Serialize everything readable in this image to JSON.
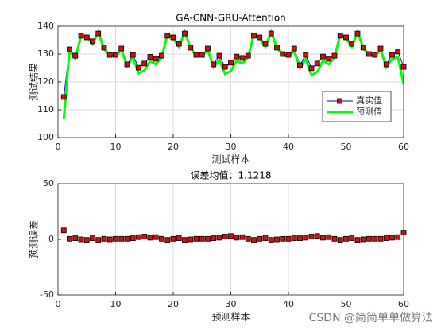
{
  "chart_data": [
    {
      "type": "line",
      "title": "GA-CNN-GRU-Attention",
      "xlabel": "测试样本",
      "ylabel": "测试结果",
      "x": [
        1,
        2,
        3,
        4,
        5,
        6,
        7,
        8,
        9,
        10,
        11,
        12,
        13,
        14,
        15,
        16,
        17,
        18,
        19,
        20,
        21,
        22,
        23,
        24,
        25,
        26,
        27,
        28,
        29,
        30,
        31,
        32,
        33,
        34,
        35,
        36,
        37,
        38,
        39,
        40,
        41,
        42,
        43,
        44,
        45,
        46,
        47,
        48,
        49,
        50,
        51,
        52,
        53,
        54,
        55,
        56,
        57,
        58,
        59,
        60
      ],
      "series": [
        {
          "name": "真实值",
          "color": "#0000ff",
          "marker": "square",
          "marker_color": "#cc1111",
          "line_width": 1,
          "values": [
            114.6,
            131.7,
            129.4,
            136.6,
            136,
            134.6,
            137.4,
            132.3,
            129.7,
            129.7,
            132,
            126.3,
            129.7,
            125.1,
            126.6,
            129,
            128.3,
            129.4,
            136.6,
            136,
            133.7,
            137.4,
            132.3,
            129.7,
            129.7,
            132,
            126.3,
            129.4,
            125.4,
            126.9,
            129.1,
            128.6,
            129.4,
            136.6,
            136,
            133.7,
            137.4,
            132.3,
            130,
            129.7,
            132,
            126,
            129.7,
            124.9,
            126.6,
            129.1,
            128.3,
            129.4,
            136.6,
            136,
            133.7,
            137.4,
            132.3,
            130,
            129.7,
            132,
            126.3,
            129.7,
            130.9,
            125.4
          ]
        },
        {
          "name": "预测值",
          "color": "#00ff00",
          "line_width": 3,
          "values": [
            106.6,
            131.2,
            128.4,
            136.6,
            136.5,
            133.6,
            137.9,
            131.8,
            129.7,
            129.2,
            131.5,
            125.8,
            128.7,
            123.1,
            124.1,
            127.5,
            126.3,
            128.9,
            137.1,
            135.5,
            132.7,
            137.9,
            132.3,
            129.2,
            129.2,
            131.5,
            125.3,
            127.9,
            122.9,
            123.9,
            127.6,
            126.6,
            128.9,
            137.1,
            135.5,
            132.7,
            137.9,
            132.3,
            129.5,
            129.2,
            131,
            125,
            128.2,
            122.4,
            123.6,
            127.6,
            126.3,
            128.9,
            137.1,
            135.5,
            132.7,
            137.9,
            132.3,
            129.5,
            129.2,
            131.5,
            125.3,
            128.2,
            128.9,
            119.4
          ]
        }
      ],
      "xlim": [
        0,
        60
      ],
      "xticks": [
        0,
        10,
        20,
        30,
        40,
        50,
        60
      ],
      "ylim": [
        100,
        140
      ],
      "yticks": [
        100,
        110,
        120,
        130,
        140
      ],
      "grid": true,
      "legend": "lower right"
    },
    {
      "type": "scatter",
      "title": "误差均值：1.1218",
      "xlabel": "预测样本",
      "ylabel": "预测误差",
      "x": [
        1,
        2,
        3,
        4,
        5,
        6,
        7,
        8,
        9,
        10,
        11,
        12,
        13,
        14,
        15,
        16,
        17,
        18,
        19,
        20,
        21,
        22,
        23,
        24,
        25,
        26,
        27,
        28,
        29,
        30,
        31,
        32,
        33,
        34,
        35,
        36,
        37,
        38,
        39,
        40,
        41,
        42,
        43,
        44,
        45,
        46,
        47,
        48,
        49,
        50,
        51,
        52,
        53,
        54,
        55,
        56,
        57,
        58,
        59,
        60
      ],
      "series": [
        {
          "marker": "square",
          "marker_color": "#cc1111",
          "values": [
            8,
            0.5,
            1,
            0,
            -0.5,
            1,
            -0.5,
            0.5,
            0,
            0.5,
            0.5,
            0.5,
            1,
            2,
            2.5,
            1.5,
            2,
            0.5,
            -0.5,
            0.5,
            1,
            -0.5,
            0,
            0.5,
            0.5,
            0.5,
            1,
            1.5,
            2.5,
            3,
            1.5,
            2,
            0.5,
            -0.5,
            0.5,
            1,
            -0.5,
            0,
            0.5,
            0.5,
            1,
            1,
            1.5,
            2.5,
            3,
            1.5,
            2,
            0.5,
            -0.5,
            0.5,
            1,
            -0.5,
            0,
            0.5,
            0.5,
            0.5,
            1,
            1.5,
            2,
            6
          ]
        }
      ],
      "xlim": [
        0,
        60
      ],
      "xticks": [
        0,
        10,
        20,
        30,
        40,
        50,
        60
      ],
      "ylim": [
        -50,
        50
      ],
      "yticks": [
        -50,
        0,
        50
      ],
      "grid": true
    }
  ],
  "watermark": "CSDN @简简单单做算法"
}
